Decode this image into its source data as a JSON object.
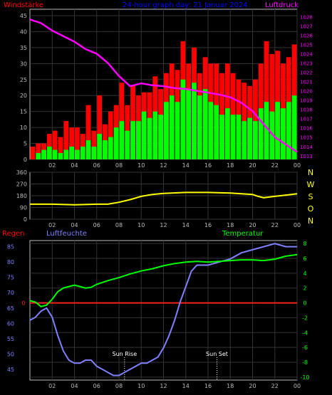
{
  "chart_data": [
    {
      "type": "bar",
      "title": "24-hour graph day: 21 Januar 2024",
      "left_label": "Windstärke",
      "right_label": "Luftdruck",
      "x_ticks": [
        "02",
        "04",
        "06",
        "08",
        "10",
        "12",
        "14",
        "16",
        "18",
        "20",
        "22",
        "00"
      ],
      "y_left_ticks": [
        0,
        5,
        10,
        15,
        20,
        25,
        30,
        35,
        40,
        45
      ],
      "y_left_lim": [
        0,
        47
      ],
      "y_right_ticks": [
        1013,
        1014,
        1015,
        1016,
        1017,
        1018,
        1019,
        1020,
        1021,
        1022,
        1023,
        1024,
        1025,
        1026,
        1027,
        1028
      ],
      "y_right_lim": [
        1012.6,
        1028.8
      ],
      "series": [
        {
          "kind": "bar",
          "color": "#ff0000",
          "hours": [
            0.5,
            1,
            1.5,
            2,
            2.5,
            3,
            3.5,
            4,
            4.5,
            5,
            5.5,
            6,
            6.5,
            7,
            7.5,
            8,
            8.5,
            9,
            9.5,
            10,
            10.5,
            11,
            11.5,
            12,
            12.5,
            13,
            13.5,
            14,
            14.5,
            15,
            15.5,
            16,
            16.5,
            17,
            17.5,
            18,
            18.5,
            19,
            19.5,
            20,
            20.5,
            21,
            21.5,
            22,
            22.5,
            23,
            23.5,
            24
          ],
          "values": [
            4,
            5,
            5,
            8,
            9,
            7,
            12,
            10,
            10,
            8,
            17,
            9,
            20,
            11,
            15,
            17,
            24,
            17,
            23,
            20,
            21,
            21,
            26,
            22,
            27,
            30,
            28,
            37,
            30,
            35,
            27,
            32,
            30,
            30,
            27,
            30,
            27,
            25,
            24,
            23,
            25,
            30,
            37,
            33,
            34,
            30,
            32,
            36
          ]
        },
        {
          "kind": "bar",
          "color": "#00ff00",
          "hours": [
            0.5,
            1,
            1.5,
            2,
            2.5,
            3,
            3.5,
            4,
            4.5,
            5,
            5.5,
            6,
            6.5,
            7,
            7.5,
            8,
            8.5,
            9,
            9.5,
            10,
            10.5,
            11,
            11.5,
            12,
            12.5,
            13,
            13.5,
            14,
            14.5,
            15,
            15.5,
            16,
            16.5,
            17,
            17.5,
            18,
            18.5,
            19,
            19.5,
            20,
            20.5,
            21,
            21.5,
            22,
            22.5,
            23,
            23.5,
            24
          ],
          "values": [
            0,
            2,
            3,
            4,
            3,
            2,
            3,
            4,
            3,
            4,
            6,
            4,
            8,
            6,
            7,
            10,
            12,
            9,
            12,
            12,
            15,
            13,
            15,
            14,
            18,
            20,
            18,
            25,
            22,
            24,
            20,
            22,
            18,
            17,
            14,
            16,
            14,
            14,
            12,
            13,
            12,
            16,
            18,
            15,
            18,
            16,
            18,
            20
          ]
        },
        {
          "kind": "line",
          "color": "#ff00ff",
          "axis": "right",
          "hours": [
            0,
            1,
            2,
            3,
            4,
            5,
            6,
            7,
            8,
            9,
            10,
            11,
            12,
            13,
            14,
            15,
            16,
            17,
            18,
            19,
            20,
            21,
            22,
            23,
            24
          ],
          "values": [
            1027.7,
            1027.3,
            1026.5,
            1025.9,
            1025.3,
            1024.5,
            1024.0,
            1023.0,
            1021.6,
            1020.5,
            1020.8,
            1020.6,
            1020.5,
            1020.3,
            1020.2,
            1020.0,
            1019.8,
            1019.6,
            1019.3,
            1018.7,
            1017.8,
            1016.4,
            1015.0,
            1014.2,
            1013.4
          ]
        }
      ]
    },
    {
      "type": "line",
      "x_ticks": [
        "02",
        "04",
        "06",
        "08",
        "10",
        "12",
        "14",
        "16",
        "18",
        "20",
        "22",
        "00"
      ],
      "y_left_ticks": [
        0,
        90,
        180,
        270,
        360
      ],
      "y_left_lim": [
        0,
        360
      ],
      "right_labels": [
        "N",
        "W",
        "S",
        "O",
        "N"
      ],
      "series": [
        {
          "color": "#ffff00",
          "hours": [
            0,
            2,
            4,
            6,
            7,
            8,
            9,
            10,
            11,
            12,
            14,
            16,
            18,
            19,
            20,
            20.5,
            21,
            22,
            23,
            24
          ],
          "values": [
            115,
            115,
            110,
            115,
            115,
            130,
            150,
            175,
            190,
            198,
            205,
            205,
            200,
            195,
            190,
            175,
            165,
            175,
            185,
            195
          ]
        }
      ]
    },
    {
      "type": "line",
      "left_label": "Regen",
      "mid_label": "Luftfeuchte",
      "right_label": "Temperatur",
      "x_ticks": [
        "02",
        "04",
        "06",
        "08",
        "10",
        "12",
        "14",
        "16",
        "18",
        "20",
        "22",
        "00"
      ],
      "y_left_ticks": [
        45,
        50,
        55,
        60,
        65,
        70,
        75,
        80,
        85
      ],
      "y_left_lim": [
        41.5,
        87
      ],
      "y_right_ticks": [
        -10,
        -8,
        -6,
        -4,
        -2,
        0,
        2,
        4,
        6,
        8
      ],
      "y_right_lim": [
        -10.4,
        8.4
      ],
      "rain_label": "0",
      "annotations": [
        {
          "text": "Sun Rise",
          "hour": 8.5
        },
        {
          "text": "Sun Set",
          "hour": 16.8
        }
      ],
      "series": [
        {
          "name": "Luftfeuchte",
          "color": "#8080ff",
          "axis": "left",
          "hours": [
            0,
            0.5,
            1,
            1.5,
            2,
            2.5,
            3,
            3.5,
            4,
            4.5,
            5,
            5.5,
            6,
            6.5,
            7,
            7.5,
            8,
            8.5,
            9,
            9.5,
            10,
            10.5,
            11,
            11.5,
            12,
            12.5,
            13,
            13.5,
            14,
            14.5,
            15,
            16,
            17,
            18,
            19,
            20,
            21,
            22,
            23,
            24
          ],
          "values": [
            61,
            62,
            64,
            65,
            62,
            56,
            51,
            48,
            47,
            47,
            48,
            48,
            46,
            45,
            44,
            43,
            43,
            44,
            45,
            46,
            47,
            47,
            48,
            49,
            52,
            56,
            61,
            67,
            72,
            77,
            79,
            79,
            80,
            81,
            83,
            84,
            85,
            86,
            85,
            85
          ]
        },
        {
          "name": "Temperatur",
          "color": "#00ff00",
          "axis": "right",
          "hours": [
            0,
            0.5,
            1,
            1.5,
            2,
            2.5,
            3,
            3.5,
            4,
            4.5,
            5,
            5.5,
            6,
            7,
            8,
            9,
            10,
            11,
            12,
            13,
            14,
            15,
            16,
            17,
            18,
            19,
            20,
            21,
            22,
            23,
            24
          ],
          "values": [
            0.3,
            0.1,
            -0.5,
            -0.3,
            0.5,
            1.5,
            2.0,
            2.2,
            2.4,
            2.2,
            2.0,
            2.1,
            2.5,
            3.0,
            3.4,
            3.9,
            4.3,
            4.6,
            5.0,
            5.3,
            5.5,
            5.6,
            5.5,
            5.6,
            5.7,
            5.8,
            5.8,
            5.7,
            5.9,
            6.3,
            6.5
          ]
        }
      ]
    }
  ]
}
